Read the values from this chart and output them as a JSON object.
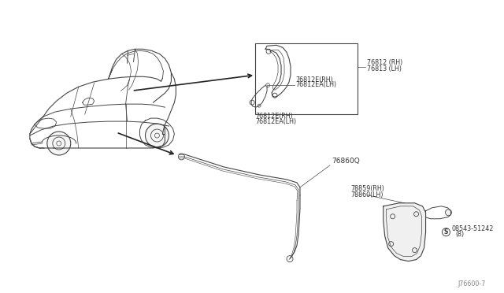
{
  "bg_color": "#ffffff",
  "line_color": "#444444",
  "text_color": "#333333",
  "fig_width": 6.4,
  "fig_height": 3.72,
  "dpi": 100,
  "labels": {
    "part1_rh": "76812 (RH)",
    "part1_lh": "76813 (LH)",
    "part2a_rh": "76812E(RH)",
    "part2a_lh": "76812EA(LH)",
    "part2b_rh": "76812E(RH)",
    "part2b_lh": "76812EA(LH)",
    "part3": "76860Q",
    "part4_rh": "78859(RH)",
    "part4_lh": "78860(LH)",
    "part5": "08543-51242",
    "part5b": "(8)",
    "footer": "J76600-7"
  },
  "font_size": 6.5,
  "small_font": 5.8
}
